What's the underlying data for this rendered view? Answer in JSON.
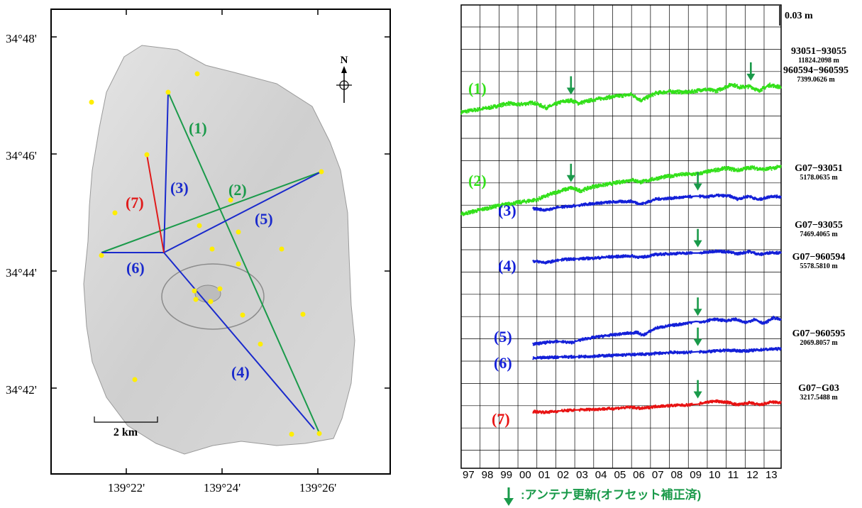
{
  "map": {
    "lat_labels": [
      "34°48'",
      "34°46'",
      "34°44'",
      "34°42'"
    ],
    "lon_labels": [
      "139°22'",
      "139°24'",
      "139°26'"
    ],
    "scale_label": "2 km",
    "north_label": "N",
    "baselines": [
      {
        "label": "(1)",
        "color": "#1a9a4a"
      },
      {
        "label": "(2)",
        "color": "#1a9a4a"
      },
      {
        "label": "(3)",
        "color": "#1a2acc"
      },
      {
        "label": "(4)",
        "color": "#1a2acc"
      },
      {
        "label": "(5)",
        "color": "#1a2acc"
      },
      {
        "label": "(6)",
        "color": "#1a2acc"
      },
      {
        "label": "(7)",
        "color": "#e01a1a"
      }
    ],
    "colors": {
      "green_line": "#1a9a4a",
      "blue_line": "#1a2acc",
      "red_line": "#e01a1a",
      "station": "#ffee00"
    }
  },
  "chart_data": {
    "type": "scatter",
    "title": "",
    "xlabel": "",
    "ylabel": "",
    "x_tick_labels": [
      "97",
      "98",
      "99",
      "00",
      "01",
      "02",
      "03",
      "04",
      "05",
      "06",
      "07",
      "08",
      "09",
      "10",
      "11",
      "12",
      "13"
    ],
    "x_range": [
      1997,
      2013.9
    ],
    "scale_bar_label": "0.03 m",
    "legend_text": ":アンテナ更新(オフセット補正済)",
    "colors": {
      "green": "#33e01a",
      "blue": "#1420d8",
      "red": "#e81414",
      "arrow": "#1a9a4a"
    },
    "series": [
      {
        "label": "(1)",
        "name": "93051−93055",
        "length": "11824.2098 m",
        "color": "green",
        "start": 1997.0,
        "antenna_updates": [
          2002.8,
          2012.3
        ],
        "points": [
          [
            1997.0,
            0.0
          ],
          [
            1998.0,
            0.004
          ],
          [
            1998.5,
            0.006
          ],
          [
            1999.5,
            0.012
          ],
          [
            2000.0,
            0.01
          ],
          [
            2000.8,
            0.013
          ],
          [
            2001.5,
            0.006
          ],
          [
            2002.3,
            0.014
          ],
          [
            2002.8,
            0.016
          ],
          [
            2003.2,
            0.012
          ],
          [
            2004.0,
            0.017
          ],
          [
            2005.0,
            0.021
          ],
          [
            2006.0,
            0.024
          ],
          [
            2006.5,
            0.016
          ],
          [
            2007.3,
            0.026
          ],
          [
            2008.0,
            0.028
          ],
          [
            2009.0,
            0.027
          ],
          [
            2009.8,
            0.031
          ],
          [
            2010.5,
            0.029
          ],
          [
            2011.3,
            0.038
          ],
          [
            2011.7,
            0.034
          ],
          [
            2012.3,
            0.035
          ],
          [
            2012.7,
            0.029
          ],
          [
            2013.3,
            0.037
          ],
          [
            2013.9,
            0.034
          ]
        ]
      },
      {
        "label": "(2)",
        "name": "960594−960595",
        "length": "7399.0626 m",
        "color": "green",
        "start": 1997.0,
        "antenna_updates": [
          2002.8,
          2012.3
        ],
        "points": [
          [
            1997.0,
            0.0
          ],
          [
            1998.0,
            0.006
          ],
          [
            1999.0,
            0.012
          ],
          [
            2000.0,
            0.016
          ],
          [
            2001.0,
            0.02
          ],
          [
            2002.0,
            0.03
          ],
          [
            2002.8,
            0.036
          ],
          [
            2003.3,
            0.032
          ],
          [
            2004.0,
            0.038
          ],
          [
            2005.0,
            0.042
          ],
          [
            2006.0,
            0.047
          ],
          [
            2006.5,
            0.044
          ],
          [
            2007.5,
            0.05
          ],
          [
            2008.5,
            0.054
          ],
          [
            2009.5,
            0.055
          ],
          [
            2010.0,
            0.058
          ],
          [
            2011.0,
            0.063
          ],
          [
            2011.6,
            0.06
          ],
          [
            2012.3,
            0.064
          ],
          [
            2013.0,
            0.061
          ],
          [
            2013.9,
            0.065
          ]
        ]
      },
      {
        "label": "(3)",
        "name": "G07−93051",
        "length": "5178.0635 m",
        "color": "blue",
        "start": 2000.8,
        "antenna_updates": [
          2009.5
        ],
        "points": [
          [
            2000.8,
            0.0
          ],
          [
            2001.5,
            -0.002
          ],
          [
            2002.0,
            0.001
          ],
          [
            2002.3,
            0.002
          ],
          [
            2003.0,
            0.004
          ],
          [
            2004.0,
            0.007
          ],
          [
            2005.0,
            0.009
          ],
          [
            2006.0,
            0.01
          ],
          [
            2006.5,
            0.006
          ],
          [
            2007.3,
            0.013
          ],
          [
            2008.0,
            0.014
          ],
          [
            2009.0,
            0.016
          ],
          [
            2009.4,
            0.017
          ],
          [
            2010.0,
            0.016
          ],
          [
            2010.5,
            0.018
          ],
          [
            2011.2,
            0.017
          ],
          [
            2011.6,
            0.013
          ],
          [
            2012.2,
            0.017
          ],
          [
            2012.7,
            0.012
          ],
          [
            2013.4,
            0.017
          ],
          [
            2013.9,
            0.016
          ]
        ]
      },
      {
        "label": "(4)",
        "name": "G07−93055",
        "length": "7469.4065 m",
        "color": "blue",
        "start": 2000.8,
        "antenna_updates": [
          2009.5
        ],
        "points": [
          [
            2000.8,
            0.0
          ],
          [
            2001.5,
            -0.002
          ],
          [
            2002.3,
            0.002
          ],
          [
            2003.0,
            0.003
          ],
          [
            2004.0,
            0.004
          ],
          [
            2005.0,
            0.006
          ],
          [
            2006.0,
            0.007
          ],
          [
            2006.5,
            0.005
          ],
          [
            2007.3,
            0.009
          ],
          [
            2008.0,
            0.01
          ],
          [
            2009.0,
            0.011
          ],
          [
            2009.5,
            0.011
          ],
          [
            2010.0,
            0.012
          ],
          [
            2010.5,
            0.014
          ],
          [
            2011.2,
            0.012
          ],
          [
            2011.6,
            0.01
          ],
          [
            2012.2,
            0.013
          ],
          [
            2012.8,
            0.009
          ],
          [
            2013.4,
            0.012
          ],
          [
            2013.9,
            0.011
          ]
        ]
      },
      {
        "label": "(5)",
        "name": "G07−960594",
        "length": "5578.5810 m",
        "color": "blue",
        "start": 2000.8,
        "antenna_updates": [
          2009.5
        ],
        "points": [
          [
            2000.8,
            0.0
          ],
          [
            2001.5,
            0.002
          ],
          [
            2002.0,
            0.004
          ],
          [
            2002.8,
            0.002
          ],
          [
            2003.5,
            0.007
          ],
          [
            2004.5,
            0.011
          ],
          [
            2005.5,
            0.014
          ],
          [
            2006.3,
            0.016
          ],
          [
            2006.6,
            0.012
          ],
          [
            2007.3,
            0.022
          ],
          [
            2008.0,
            0.025
          ],
          [
            2008.8,
            0.028
          ],
          [
            2009.4,
            0.031
          ],
          [
            2009.8,
            0.03
          ],
          [
            2010.3,
            0.034
          ],
          [
            2011.0,
            0.032
          ],
          [
            2011.5,
            0.034
          ],
          [
            2012.0,
            0.029
          ],
          [
            2012.5,
            0.034
          ],
          [
            2013.0,
            0.028
          ],
          [
            2013.5,
            0.036
          ],
          [
            2013.9,
            0.033
          ]
        ]
      },
      {
        "label": "(6)",
        "name": "G07−960595",
        "length": "2069.8057 m",
        "color": "blue",
        "start": 2000.8,
        "antenna_updates": [
          2009.5
        ],
        "points": [
          [
            2000.8,
            0.0
          ],
          [
            2001.5,
            0.001
          ],
          [
            2002.3,
            0.002
          ],
          [
            2003.0,
            0.002
          ],
          [
            2004.0,
            0.003
          ],
          [
            2005.0,
            0.004
          ],
          [
            2006.0,
            0.005
          ],
          [
            2007.0,
            0.006
          ],
          [
            2008.0,
            0.008
          ],
          [
            2009.0,
            0.008
          ],
          [
            2009.5,
            0.009
          ],
          [
            2010.0,
            0.009
          ],
          [
            2011.0,
            0.011
          ],
          [
            2012.0,
            0.01
          ],
          [
            2013.0,
            0.012
          ],
          [
            2013.9,
            0.013
          ]
        ]
      },
      {
        "label": "(7)",
        "name": "G07−G03",
        "length": "3217.5488 m",
        "color": "red",
        "start": 2000.8,
        "antenna_updates": [
          2009.5
        ],
        "points": [
          [
            2000.8,
            0.0
          ],
          [
            2001.5,
            -0.001
          ],
          [
            2002.3,
            0.001
          ],
          [
            2003.0,
            0.002
          ],
          [
            2004.0,
            0.003
          ],
          [
            2005.0,
            0.004
          ],
          [
            2006.0,
            0.006
          ],
          [
            2006.5,
            0.004
          ],
          [
            2007.3,
            0.007
          ],
          [
            2008.0,
            0.008
          ],
          [
            2009.0,
            0.009
          ],
          [
            2009.5,
            0.01
          ],
          [
            2010.0,
            0.013
          ],
          [
            2010.5,
            0.014
          ],
          [
            2011.2,
            0.012
          ],
          [
            2011.6,
            0.009
          ],
          [
            2012.2,
            0.012
          ],
          [
            2012.8,
            0.009
          ],
          [
            2013.4,
            0.013
          ],
          [
            2013.9,
            0.012
          ]
        ]
      }
    ]
  }
}
